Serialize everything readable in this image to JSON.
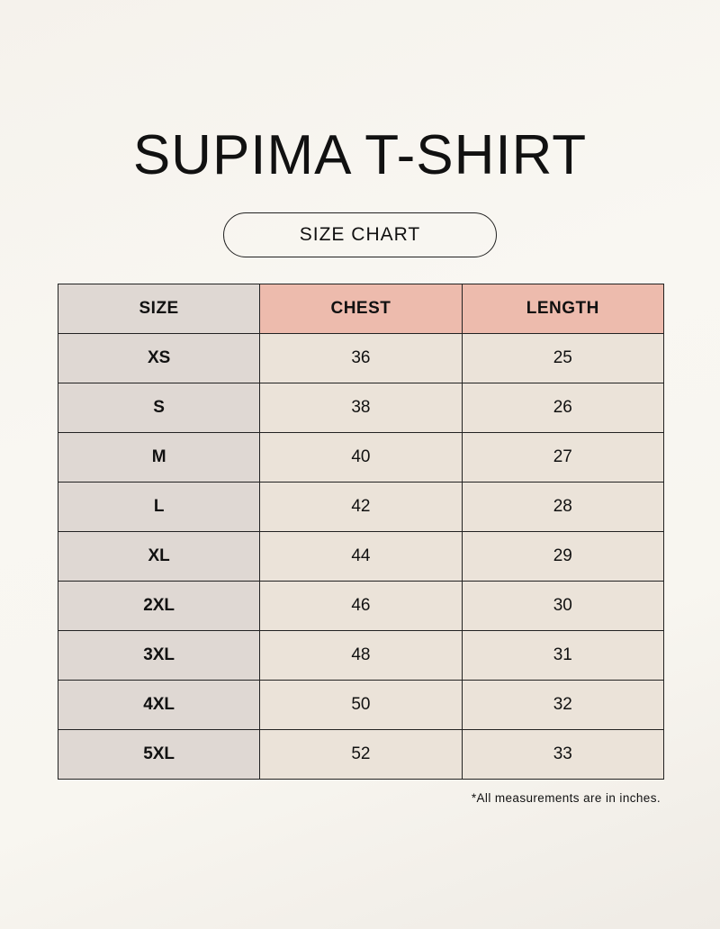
{
  "title": "SUPIMA T-SHIRT",
  "subtitle": "SIZE CHART",
  "table": {
    "headers": [
      "SIZE",
      "CHEST",
      "LENGTH"
    ],
    "rows": [
      [
        "XS",
        "36",
        "25"
      ],
      [
        "S",
        "38",
        "26"
      ],
      [
        "M",
        "40",
        "27"
      ],
      [
        "L",
        "42",
        "28"
      ],
      [
        "XL",
        "44",
        "29"
      ],
      [
        "2XL",
        "46",
        "30"
      ],
      [
        "3XL",
        "48",
        "31"
      ],
      [
        "4XL",
        "50",
        "32"
      ],
      [
        "5XL",
        "52",
        "33"
      ]
    ]
  },
  "note": "*All measurements are in inches.",
  "colors": {
    "header_accent": "#edbbad",
    "size_column": "#dfd8d3",
    "cell": "#ebe3d9"
  }
}
